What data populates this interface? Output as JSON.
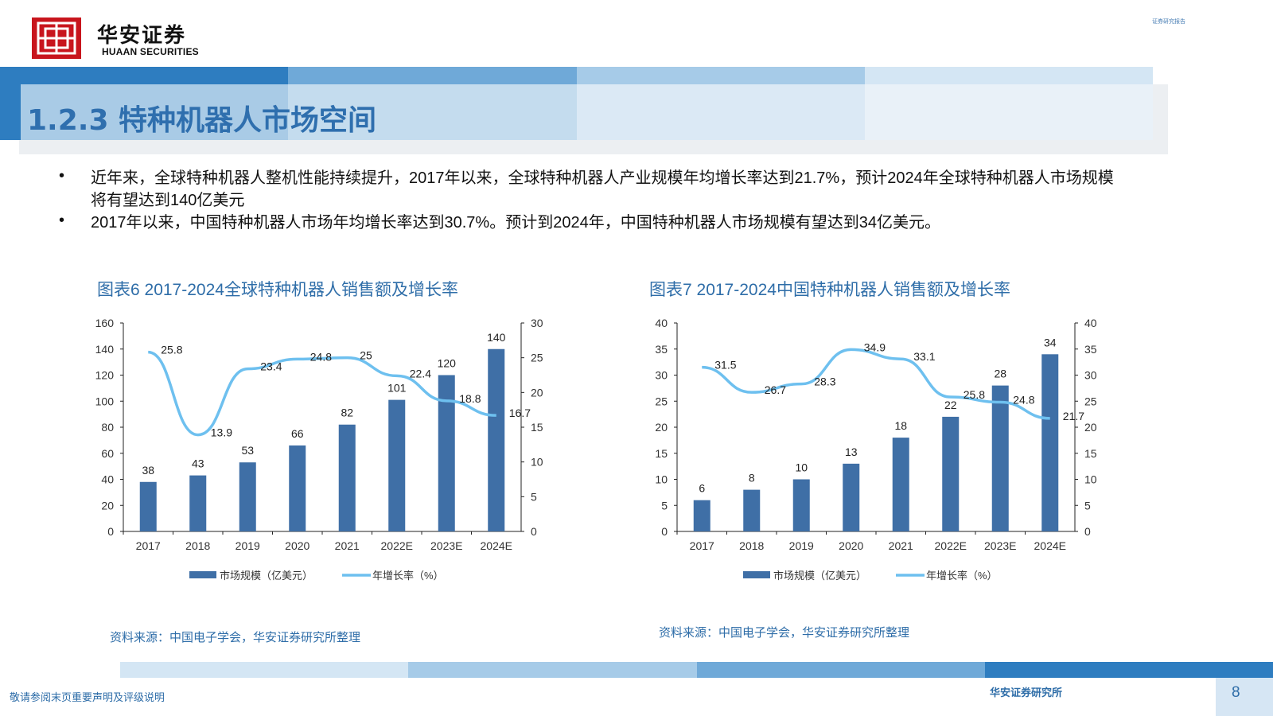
{
  "header": {
    "brand_cn": "华安证券",
    "brand_en": "HUAAN SECURITIES",
    "report_type": "证券研究报告"
  },
  "section_title": "1.2.3 特种机器人市场空间",
  "bullets": [
    "近年来，全球特种机器人整机性能持续提升，2017年以来，全球特种机器人产业规模年均增长率达到21.7%，预计2024年全球特种机器人市场规模将有望达到140亿美元",
    "2017年以来，中国特种机器人市场年均增长率达到30.7%。预计到2024年，中国特种机器人市场规模有望达到34亿美元。"
  ],
  "colors": {
    "bar": "#3f6fa6",
    "line": "#6ec0ef",
    "accent": "#2e6da8",
    "logo_red": "#c8151d"
  },
  "chart_data": [
    {
      "type": "bar",
      "title": "图表6 2017-2024全球特种机器人销售额及增长率",
      "categories": [
        "2017",
        "2018",
        "2019",
        "2020",
        "2021",
        "2022E",
        "2023E",
        "2024E"
      ],
      "series": [
        {
          "name": "市场规模（亿美元）",
          "type": "bar",
          "axis": "left",
          "values": [
            38,
            43,
            53,
            66,
            82,
            101,
            120,
            140
          ]
        },
        {
          "name": "年增长率（%）",
          "type": "line",
          "axis": "right",
          "values": [
            25.8,
            13.9,
            23.4,
            24.8,
            25,
            22.4,
            18.8,
            16.7
          ]
        }
      ],
      "ylim": [
        0,
        160
      ],
      "yticks": [
        0,
        20,
        40,
        60,
        80,
        100,
        120,
        140,
        160
      ],
      "y2lim": [
        0,
        30
      ],
      "y2ticks": [
        0,
        5,
        10,
        15,
        20,
        25,
        30
      ],
      "legend": "bottom",
      "source": "资料来源：中国电子学会，华安证券研究所整理"
    },
    {
      "type": "bar",
      "title": "图表7 2017-2024中国特种机器人销售额及增长率",
      "categories": [
        "2017",
        "2018",
        "2019",
        "2020",
        "2021",
        "2022E",
        "2023E",
        "2024E"
      ],
      "series": [
        {
          "name": "市场规模（亿美元）",
          "type": "bar",
          "axis": "left",
          "values": [
            6,
            8,
            10,
            13,
            18,
            22,
            28,
            34
          ]
        },
        {
          "name": "年增长率（%）",
          "type": "line",
          "axis": "right",
          "values": [
            31.5,
            26.7,
            28.3,
            34.9,
            33.1,
            25.8,
            24.8,
            21.7
          ]
        }
      ],
      "ylim": [
        0,
        40
      ],
      "yticks": [
        0,
        5,
        10,
        15,
        20,
        25,
        30,
        35,
        40
      ],
      "y2lim": [
        0,
        40
      ],
      "y2ticks": [
        0,
        5,
        10,
        15,
        20,
        25,
        30,
        35,
        40
      ],
      "legend": "bottom",
      "source": "资料来源：中国电子学会，华安证券研究所整理"
    }
  ],
  "footer": {
    "disclaimer": "敬请参阅末页重要声明及评级说明",
    "institute": "华安证券研究所",
    "page": "8"
  }
}
